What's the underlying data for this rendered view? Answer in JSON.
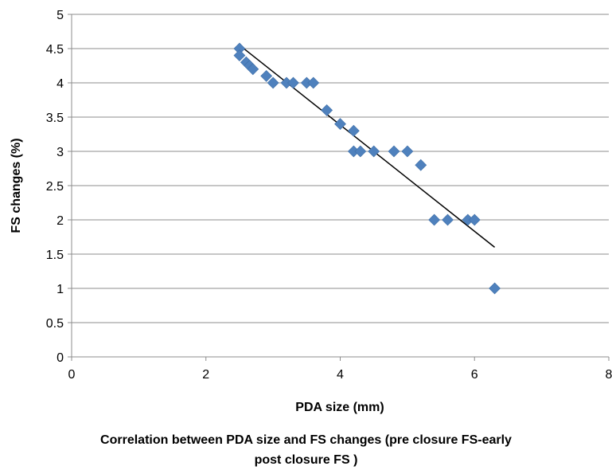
{
  "chart_data": {
    "type": "scatter",
    "title": "",
    "xlabel": "PDA size (mm)",
    "ylabel": "FS changes (%)",
    "xlim": [
      0,
      8
    ],
    "ylim": [
      0,
      5
    ],
    "xticks": [
      0,
      2,
      4,
      6,
      8
    ],
    "yticks": [
      0,
      0.5,
      1,
      1.5,
      2,
      2.5,
      3,
      3.5,
      4,
      4.5,
      5
    ],
    "xtick_labels": [
      "0",
      "2",
      "4",
      "6",
      "8"
    ],
    "ytick_labels": [
      "0",
      "0.5",
      "1",
      "1.5",
      "2",
      "2.5",
      "3",
      "3.5",
      "4",
      "4.5",
      "5"
    ],
    "grid": "horizontal",
    "marker": "diamond",
    "marker_color": "#4F81BD",
    "line_color": "#000000",
    "points": [
      {
        "x": 2.5,
        "y": 4.5
      },
      {
        "x": 2.5,
        "y": 4.4
      },
      {
        "x": 2.6,
        "y": 4.3
      },
      {
        "x": 2.65,
        "y": 4.25
      },
      {
        "x": 2.7,
        "y": 4.2
      },
      {
        "x": 2.9,
        "y": 4.1
      },
      {
        "x": 3.0,
        "y": 4.0
      },
      {
        "x": 3.2,
        "y": 4.0
      },
      {
        "x": 3.3,
        "y": 4.0
      },
      {
        "x": 3.5,
        "y": 4.0
      },
      {
        "x": 3.6,
        "y": 4.0
      },
      {
        "x": 3.8,
        "y": 3.6
      },
      {
        "x": 4.0,
        "y": 3.4
      },
      {
        "x": 4.2,
        "y": 3.3
      },
      {
        "x": 4.2,
        "y": 3.0
      },
      {
        "x": 4.3,
        "y": 3.0
      },
      {
        "x": 4.5,
        "y": 3.0
      },
      {
        "x": 4.8,
        "y": 3.0
      },
      {
        "x": 5.0,
        "y": 3.0
      },
      {
        "x": 5.2,
        "y": 2.8
      },
      {
        "x": 5.4,
        "y": 2.0
      },
      {
        "x": 5.6,
        "y": 2.0
      },
      {
        "x": 5.9,
        "y": 2.0
      },
      {
        "x": 6.0,
        "y": 2.0
      },
      {
        "x": 6.3,
        "y": 1.0
      }
    ],
    "trendline": {
      "x": [
        2.5,
        6.3
      ],
      "y": [
        4.55,
        1.6
      ]
    }
  },
  "caption": {
    "line1": "Correlation between  PDA size and FS changes (pre closure FS-early",
    "line2": "post closure FS )"
  }
}
